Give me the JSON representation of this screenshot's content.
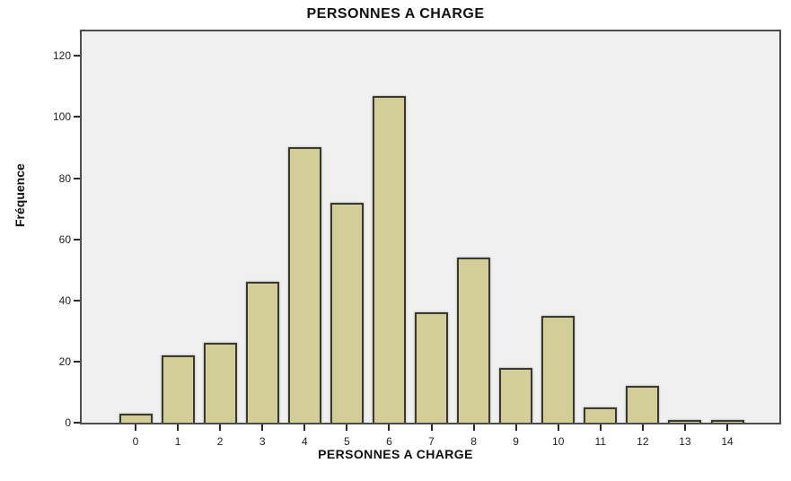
{
  "chart_data": {
    "type": "bar",
    "title": "PERSONNES A CHARGE",
    "xlabel": "PERSONNES A CHARGE",
    "ylabel": "Fréquence",
    "categories": [
      "0",
      "1",
      "2",
      "3",
      "4",
      "5",
      "6",
      "7",
      "8",
      "9",
      "10",
      "11",
      "12",
      "13",
      "14"
    ],
    "values": [
      3,
      22,
      26,
      46,
      90,
      72,
      107,
      36,
      54,
      18,
      35,
      5,
      12,
      1,
      1
    ],
    "yticks": [
      0,
      20,
      40,
      60,
      80,
      100,
      120
    ],
    "ylim": [
      0,
      128
    ],
    "grid": false,
    "legend_position": "none",
    "colors": {
      "bar_fill": "#d3ce97",
      "bar_border": "#39392f",
      "plot_background": "#f0f0f0",
      "frame_border": "#4d4d4d",
      "text": "#111111"
    }
  }
}
